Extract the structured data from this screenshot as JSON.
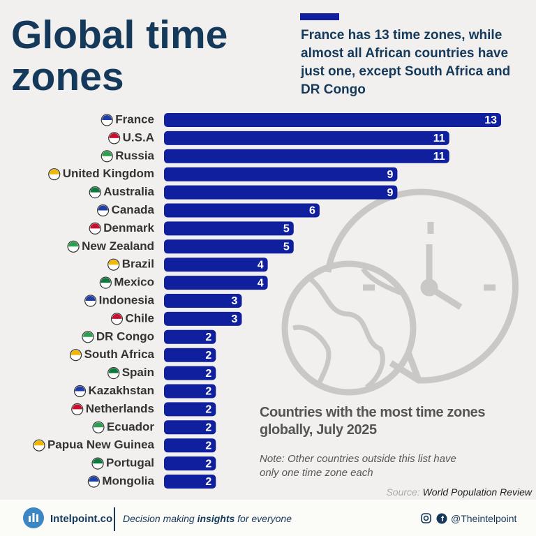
{
  "chart_data": {
    "type": "bar",
    "orientation": "horizontal",
    "title": "Global time zones",
    "subtitle": "France has 13 time zones, while almost all African countries have just one, except South Africa and DR Congo",
    "chart_title": "Countries with the most time zones globally, July 2025",
    "note": "Note: Other countries outside this list have only one time zone each",
    "source_label": "Source:",
    "source": "World Population Review",
    "categories": [
      "France",
      "U.S.A",
      "Russia",
      "United Kingdom",
      "Australia",
      "Canada",
      "Denmark",
      "New Zealand",
      "Brazil",
      "Mexico",
      "Indonesia",
      "Chile",
      "DR Congo",
      "South Africa",
      "Spain",
      "Kazakhstan",
      "Netherlands",
      "Ecuador",
      "Papua New Guinea",
      "Portugal",
      "Mongolia"
    ],
    "values": [
      13,
      11,
      11,
      9,
      9,
      6,
      5,
      5,
      4,
      4,
      3,
      3,
      2,
      2,
      2,
      2,
      2,
      2,
      2,
      2,
      2
    ],
    "color": "#0f1f9e"
  },
  "footer": {
    "brand": "Intelpoint.co",
    "tagline_before": "Decision making",
    "tagline_emphasis": "insights",
    "tagline_after": "for everyone",
    "handle": "@Theintelpoint"
  }
}
